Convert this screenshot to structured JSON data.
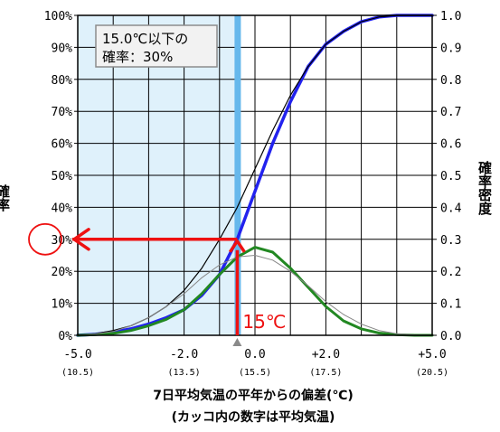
{
  "chart_data": {
    "type": "line",
    "xlim": [
      -5.0,
      5.0
    ],
    "ylim_left": [
      0,
      1.0
    ],
    "ylim_right": [
      0,
      1.0
    ],
    "grid": true,
    "y_left_ticks": [
      "0%",
      "10%",
      "20%",
      "30%",
      "40%",
      "50%",
      "60%",
      "70%",
      "80%",
      "90%",
      "100%"
    ],
    "y_right_ticks": [
      "0.0",
      "0.1",
      "0.2",
      "0.3",
      "0.4",
      "0.5",
      "0.6",
      "0.7",
      "0.8",
      "0.9",
      "1.0"
    ],
    "x_ticks": [
      {
        "x": -5.0,
        "label": "-5.0",
        "sub": "(10.5)"
      },
      {
        "x": -2.0,
        "label": "-2.0",
        "sub": "(13.5)"
      },
      {
        "x": 0.0,
        "label": "0.0",
        "sub": "(15.5)"
      },
      {
        "x": 2.0,
        "label": "+2.0",
        "sub": "(17.5)"
      },
      {
        "x": 5.0,
        "label": "+5.0",
        "sub": "(20.5)"
      }
    ],
    "y_left_label": "確率",
    "y_right_label": "確率密度",
    "xlabel_line1": "7日平均気温の平年からの偏差(℃)",
    "xlabel_line2": "(カッコ内の数字は平均気温)",
    "threshold": {
      "x": -0.5,
      "label": "15℃",
      "probability": 0.3,
      "probability_label": "30%"
    },
    "annotation_box": {
      "line1": "15.0℃以下の",
      "line2": "確率：30%"
    },
    "series": [
      {
        "role": "cumulative_forecast",
        "color": "#2222ee",
        "x": [
          -5.0,
          -4.5,
          -4.0,
          -3.5,
          -3.0,
          -2.5,
          -2.0,
          -1.5,
          -1.0,
          -0.5,
          0.0,
          0.5,
          1.0,
          1.5,
          2.0,
          2.5,
          3.0,
          3.5,
          4.0,
          4.5,
          5.0
        ],
        "values": [
          0.0,
          0.003,
          0.01,
          0.02,
          0.035,
          0.055,
          0.08,
          0.125,
          0.19,
          0.3,
          0.45,
          0.6,
          0.73,
          0.84,
          0.91,
          0.95,
          0.98,
          0.995,
          1.0,
          1.0,
          1.0
        ]
      },
      {
        "role": "cumulative_normal",
        "color": "#000000",
        "x": [
          -5.0,
          -4.5,
          -4.0,
          -3.5,
          -3.0,
          -2.5,
          -2.0,
          -1.5,
          -1.0,
          -0.5,
          0.0,
          0.5,
          1.0,
          1.5,
          2.0,
          2.5,
          3.0,
          3.5,
          4.0,
          4.5,
          5.0
        ],
        "values": [
          0.0,
          0.005,
          0.015,
          0.03,
          0.055,
          0.09,
          0.14,
          0.21,
          0.3,
          0.4,
          0.52,
          0.64,
          0.75,
          0.84,
          0.91,
          0.95,
          0.98,
          0.995,
          1.0,
          1.0,
          1.0
        ]
      },
      {
        "role": "density_forecast",
        "color": "#228822",
        "x": [
          -5.0,
          -4.5,
          -4.0,
          -3.5,
          -3.0,
          -2.5,
          -2.0,
          -1.5,
          -1.0,
          -0.5,
          0.0,
          0.5,
          1.0,
          1.5,
          2.0,
          2.5,
          3.0,
          3.5,
          4.0,
          4.5,
          5.0
        ],
        "values": [
          0.0,
          0.002,
          0.006,
          0.015,
          0.03,
          0.05,
          0.08,
          0.13,
          0.19,
          0.245,
          0.275,
          0.26,
          0.21,
          0.15,
          0.09,
          0.045,
          0.02,
          0.007,
          0.002,
          0.0,
          0.0
        ]
      },
      {
        "role": "density_normal",
        "color": "#888888",
        "x": [
          -5.0,
          -4.5,
          -4.0,
          -3.5,
          -3.0,
          -2.5,
          -2.0,
          -1.5,
          -1.0,
          -0.5,
          0.0,
          0.5,
          1.0,
          1.5,
          2.0,
          2.5,
          3.0,
          3.5,
          4.0,
          4.5,
          5.0
        ],
        "values": [
          0.0,
          0.004,
          0.012,
          0.03,
          0.055,
          0.09,
          0.13,
          0.18,
          0.22,
          0.245,
          0.25,
          0.235,
          0.2,
          0.155,
          0.105,
          0.065,
          0.035,
          0.015,
          0.005,
          0.001,
          0.0
        ]
      }
    ]
  }
}
